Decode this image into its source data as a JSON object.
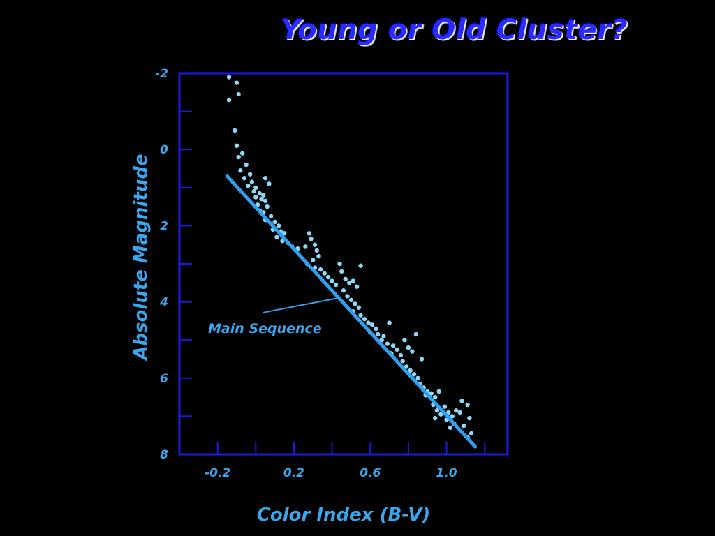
{
  "title": "Young or Old Cluster?",
  "colors": {
    "background": "#000000",
    "frame": "#1a1ae6",
    "points": "#8fd8f5",
    "line": "#2f9ff0",
    "text": "#3aa6ee"
  },
  "chart_data": {
    "type": "scatter",
    "title": "Young or Old Cluster?",
    "xlabel": "Color Index (B-V)",
    "ylabel": "Absolute Magnitude",
    "xlim": [
      -0.4,
      1.32
    ],
    "ylim": [
      8,
      -2
    ],
    "y_inverted": true,
    "grid": false,
    "x_ticks": [
      -0.2,
      0.2,
      0.6,
      1.0
    ],
    "x_tick_labels": [
      "-0.2",
      "0.2",
      "0.6",
      "1.0"
    ],
    "y_ticks": [
      -2,
      0,
      2,
      4,
      6,
      8
    ],
    "y_tick_labels": [
      "-2",
      "0",
      "2",
      "4",
      "6",
      "8"
    ],
    "y_minor_ticks": [
      -1,
      1,
      3,
      5,
      7
    ],
    "main_sequence": {
      "label": "Main Sequence",
      "x": [
        -0.15,
        1.15
      ],
      "y": [
        0.7,
        7.8
      ]
    },
    "points": [
      {
        "x": -0.14,
        "y": -1.9
      },
      {
        "x": -0.1,
        "y": -1.75
      },
      {
        "x": -0.09,
        "y": -1.45
      },
      {
        "x": -0.14,
        "y": -1.3
      },
      {
        "x": -0.11,
        "y": -0.5
      },
      {
        "x": -0.1,
        "y": -0.1
      },
      {
        "x": -0.07,
        "y": 0.1
      },
      {
        "x": -0.09,
        "y": 0.2
      },
      {
        "x": -0.05,
        "y": 0.4
      },
      {
        "x": -0.08,
        "y": 0.55
      },
      {
        "x": -0.03,
        "y": 0.65
      },
      {
        "x": -0.06,
        "y": 0.75
      },
      {
        "x": -0.02,
        "y": 0.85
      },
      {
        "x": -0.04,
        "y": 0.95
      },
      {
        "x": 0.0,
        "y": 1.0
      },
      {
        "x": 0.05,
        "y": 0.75
      },
      {
        "x": 0.07,
        "y": 0.9
      },
      {
        "x": -0.01,
        "y": 1.1
      },
      {
        "x": 0.02,
        "y": 1.15
      },
      {
        "x": 0.04,
        "y": 1.2
      },
      {
        "x": 0.0,
        "y": 1.25
      },
      {
        "x": 0.03,
        "y": 1.3
      },
      {
        "x": 0.05,
        "y": 1.35
      },
      {
        "x": 0.01,
        "y": 1.45
      },
      {
        "x": 0.06,
        "y": 1.5
      },
      {
        "x": 0.02,
        "y": 1.6
      },
      {
        "x": 0.04,
        "y": 1.65
      },
      {
        "x": 0.08,
        "y": 1.75
      },
      {
        "x": 0.05,
        "y": 1.85
      },
      {
        "x": 0.1,
        "y": 1.9
      },
      {
        "x": 0.12,
        "y": 2.0
      },
      {
        "x": 0.09,
        "y": 2.1
      },
      {
        "x": 0.13,
        "y": 2.15
      },
      {
        "x": 0.15,
        "y": 2.2
      },
      {
        "x": 0.11,
        "y": 2.3
      },
      {
        "x": 0.14,
        "y": 2.4
      },
      {
        "x": 0.17,
        "y": 2.45
      },
      {
        "x": 0.19,
        "y": 2.55
      },
      {
        "x": 0.22,
        "y": 2.6
      },
      {
        "x": 0.26,
        "y": 2.55
      },
      {
        "x": 0.28,
        "y": 2.2
      },
      {
        "x": 0.29,
        "y": 2.35
      },
      {
        "x": 0.31,
        "y": 2.5
      },
      {
        "x": 0.32,
        "y": 2.65
      },
      {
        "x": 0.33,
        "y": 2.8
      },
      {
        "x": 0.3,
        "y": 2.9
      },
      {
        "x": 0.27,
        "y": 3.0
      },
      {
        "x": 0.31,
        "y": 3.1
      },
      {
        "x": 0.34,
        "y": 3.15
      },
      {
        "x": 0.36,
        "y": 3.25
      },
      {
        "x": 0.38,
        "y": 3.35
      },
      {
        "x": 0.4,
        "y": 3.45
      },
      {
        "x": 0.42,
        "y": 3.55
      },
      {
        "x": 0.44,
        "y": 3.0
      },
      {
        "x": 0.45,
        "y": 3.2
      },
      {
        "x": 0.47,
        "y": 3.4
      },
      {
        "x": 0.49,
        "y": 3.5
      },
      {
        "x": 0.51,
        "y": 3.45
      },
      {
        "x": 0.53,
        "y": 3.6
      },
      {
        "x": 0.55,
        "y": 3.05
      },
      {
        "x": 0.46,
        "y": 3.7
      },
      {
        "x": 0.48,
        "y": 3.85
      },
      {
        "x": 0.5,
        "y": 3.95
      },
      {
        "x": 0.52,
        "y": 4.05
      },
      {
        "x": 0.54,
        "y": 4.15
      },
      {
        "x": 0.51,
        "y": 4.25
      },
      {
        "x": 0.55,
        "y": 4.35
      },
      {
        "x": 0.57,
        "y": 4.45
      },
      {
        "x": 0.59,
        "y": 4.55
      },
      {
        "x": 0.61,
        "y": 4.6
      },
      {
        "x": 0.63,
        "y": 4.7
      },
      {
        "x": 0.6,
        "y": 4.8
      },
      {
        "x": 0.64,
        "y": 4.85
      },
      {
        "x": 0.67,
        "y": 4.9
      },
      {
        "x": 0.7,
        "y": 4.55
      },
      {
        "x": 0.66,
        "y": 5.0
      },
      {
        "x": 0.69,
        "y": 5.1
      },
      {
        "x": 0.72,
        "y": 5.15
      },
      {
        "x": 0.74,
        "y": 5.25
      },
      {
        "x": 0.71,
        "y": 5.35
      },
      {
        "x": 0.76,
        "y": 5.4
      },
      {
        "x": 0.78,
        "y": 5.0
      },
      {
        "x": 0.8,
        "y": 5.2
      },
      {
        "x": 0.82,
        "y": 5.3
      },
      {
        "x": 0.84,
        "y": 4.85
      },
      {
        "x": 0.77,
        "y": 5.55
      },
      {
        "x": 0.79,
        "y": 5.7
      },
      {
        "x": 0.81,
        "y": 5.8
      },
      {
        "x": 0.83,
        "y": 5.9
      },
      {
        "x": 0.85,
        "y": 6.0
      },
      {
        "x": 0.87,
        "y": 5.5
      },
      {
        "x": 0.86,
        "y": 6.15
      },
      {
        "x": 0.88,
        "y": 6.25
      },
      {
        "x": 0.9,
        "y": 6.35
      },
      {
        "x": 0.89,
        "y": 6.45
      },
      {
        "x": 0.92,
        "y": 6.4
      },
      {
        "x": 0.94,
        "y": 6.5
      },
      {
        "x": 0.96,
        "y": 6.35
      },
      {
        "x": 0.93,
        "y": 6.7
      },
      {
        "x": 0.95,
        "y": 6.85
      },
      {
        "x": 0.97,
        "y": 6.95
      },
      {
        "x": 0.94,
        "y": 7.05
      },
      {
        "x": 0.99,
        "y": 6.75
      },
      {
        "x": 1.01,
        "y": 6.9
      },
      {
        "x": 1.0,
        "y": 7.1
      },
      {
        "x": 1.03,
        "y": 7.0
      },
      {
        "x": 1.05,
        "y": 6.85
      },
      {
        "x": 1.07,
        "y": 6.9
      },
      {
        "x": 1.04,
        "y": 7.2
      },
      {
        "x": 1.02,
        "y": 7.3
      },
      {
        "x": 1.08,
        "y": 6.6
      },
      {
        "x": 1.11,
        "y": 6.7
      },
      {
        "x": 1.12,
        "y": 7.05
      },
      {
        "x": 1.09,
        "y": 7.25
      },
      {
        "x": 1.13,
        "y": 7.45
      },
      {
        "x": 1.11,
        "y": 7.55
      }
    ]
  }
}
